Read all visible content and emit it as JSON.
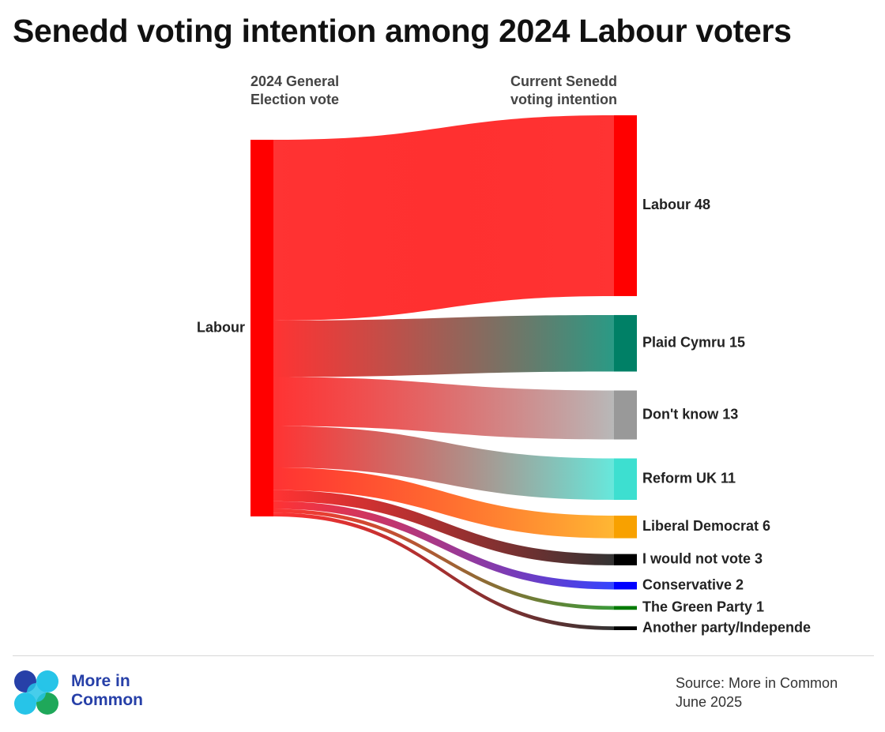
{
  "title": "Senedd voting intention among 2024 Labour voters",
  "headers": {
    "left": [
      "2024 General",
      "Election vote"
    ],
    "right": [
      "Current Senedd",
      "voting intention"
    ]
  },
  "chart_data": {
    "type": "sankey",
    "title": "Senedd voting intention among 2024 Labour voters",
    "source": {
      "name": "Labour",
      "color": "#ff0000"
    },
    "targets": [
      {
        "name": "Labour",
        "value": 48,
        "label": "Labour 48",
        "color": "#ff0000",
        "flow_color": "#ff3333"
      },
      {
        "name": "Plaid Cymru",
        "value": 15,
        "label": "Plaid Cymru 15",
        "color": "#008066",
        "flow_color": "#2a9a85"
      },
      {
        "name": "Don't know",
        "value": 13,
        "label": "Don't know 13",
        "color": "#999999",
        "flow_color": "#b8b8b8"
      },
      {
        "name": "Reform UK",
        "value": 11,
        "label": "Reform UK 11",
        "color": "#3ddfd0",
        "flow_color": "#66e8dc"
      },
      {
        "name": "Liberal Democrat",
        "value": 6,
        "label": "Liberal Democrat 6",
        "color": "#f8a100",
        "flow_color": "#ffb733"
      },
      {
        "name": "I would not vote",
        "value": 3,
        "label": "I would not vote 3",
        "color": "#000000",
        "flow_color": "#333333"
      },
      {
        "name": "Conservative",
        "value": 2,
        "label": "Conservative 2",
        "color": "#0000ff",
        "flow_color": "#3344ff"
      },
      {
        "name": "The Green Party",
        "value": 1,
        "label": "The Green Party 1",
        "color": "#007a00",
        "flow_color": "#3a9a3a"
      },
      {
        "name": "Another party/Independent",
        "value": 1,
        "label": "Another party/Independe",
        "color": "#000000",
        "flow_color": "#333333"
      }
    ]
  },
  "footer": {
    "logo_lines": [
      "More in",
      "Common"
    ],
    "source_lines": [
      "Source: More in Common",
      "June 2025"
    ]
  },
  "colors": {
    "logo_blue": "#2740a8",
    "logo_cyan": "#27c4e8",
    "logo_green": "#1fa85a"
  }
}
